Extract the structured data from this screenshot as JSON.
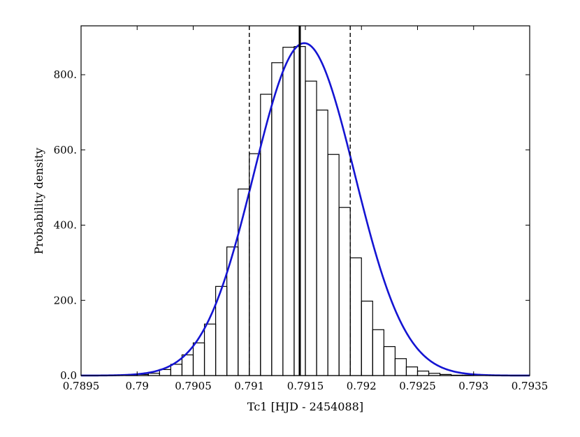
{
  "chart_data": {
    "type": "bar",
    "title": "",
    "xlabel": "Tc1 [HJD - 2454088]",
    "ylabel": "Probability density",
    "xlim": [
      0.7895,
      0.7935
    ],
    "ylim": [
      0,
      930
    ],
    "xticks": [
      0.7895,
      0.79,
      0.7905,
      0.791,
      0.7915,
      0.792,
      0.7925,
      0.793,
      0.7935
    ],
    "xtick_labels": [
      "0.7895",
      "0.79",
      "0.7905",
      "0.791",
      "0.7915",
      "0.792",
      "0.7925",
      "0.793",
      "0.7935"
    ],
    "yticks": [
      0,
      200,
      400,
      600,
      800
    ],
    "ytick_labels": [
      "0.0",
      "200.",
      "400.",
      "600.",
      "800."
    ],
    "grid": false,
    "histogram": {
      "bin_width": 0.0001,
      "bin_left_edges": [
        0.7899,
        0.79,
        0.7901,
        0.7902,
        0.7903,
        0.7904,
        0.7905,
        0.7906,
        0.7907,
        0.7908,
        0.7909,
        0.791,
        0.7911,
        0.7912,
        0.7913,
        0.7914,
        0.7915,
        0.7916,
        0.7917,
        0.7918,
        0.7919,
        0.792,
        0.7921,
        0.7922,
        0.7923,
        0.7924,
        0.7925,
        0.7926,
        0.7927,
        0.7928,
        0.7929,
        0.793,
        0.7931
      ],
      "values": [
        1,
        3,
        6,
        16,
        30,
        55,
        87,
        137,
        237,
        342,
        496,
        590,
        748,
        832,
        873,
        875,
        783,
        706,
        588,
        447,
        313,
        198,
        122,
        77,
        45,
        23,
        12,
        6,
        3,
        1,
        1,
        0,
        0
      ]
    },
    "fit_curve": {
      "type": "gaussian",
      "color": "#1414d2",
      "peak": 884,
      "mean": 0.79149,
      "sigma": 0.00045
    },
    "vlines": [
      {
        "x": 0.79145,
        "style": "solid",
        "color": "#000000"
      },
      {
        "x": 0.791,
        "style": "dashed",
        "color": "#000000"
      },
      {
        "x": 0.7919,
        "style": "dashed",
        "color": "#000000"
      }
    ]
  }
}
